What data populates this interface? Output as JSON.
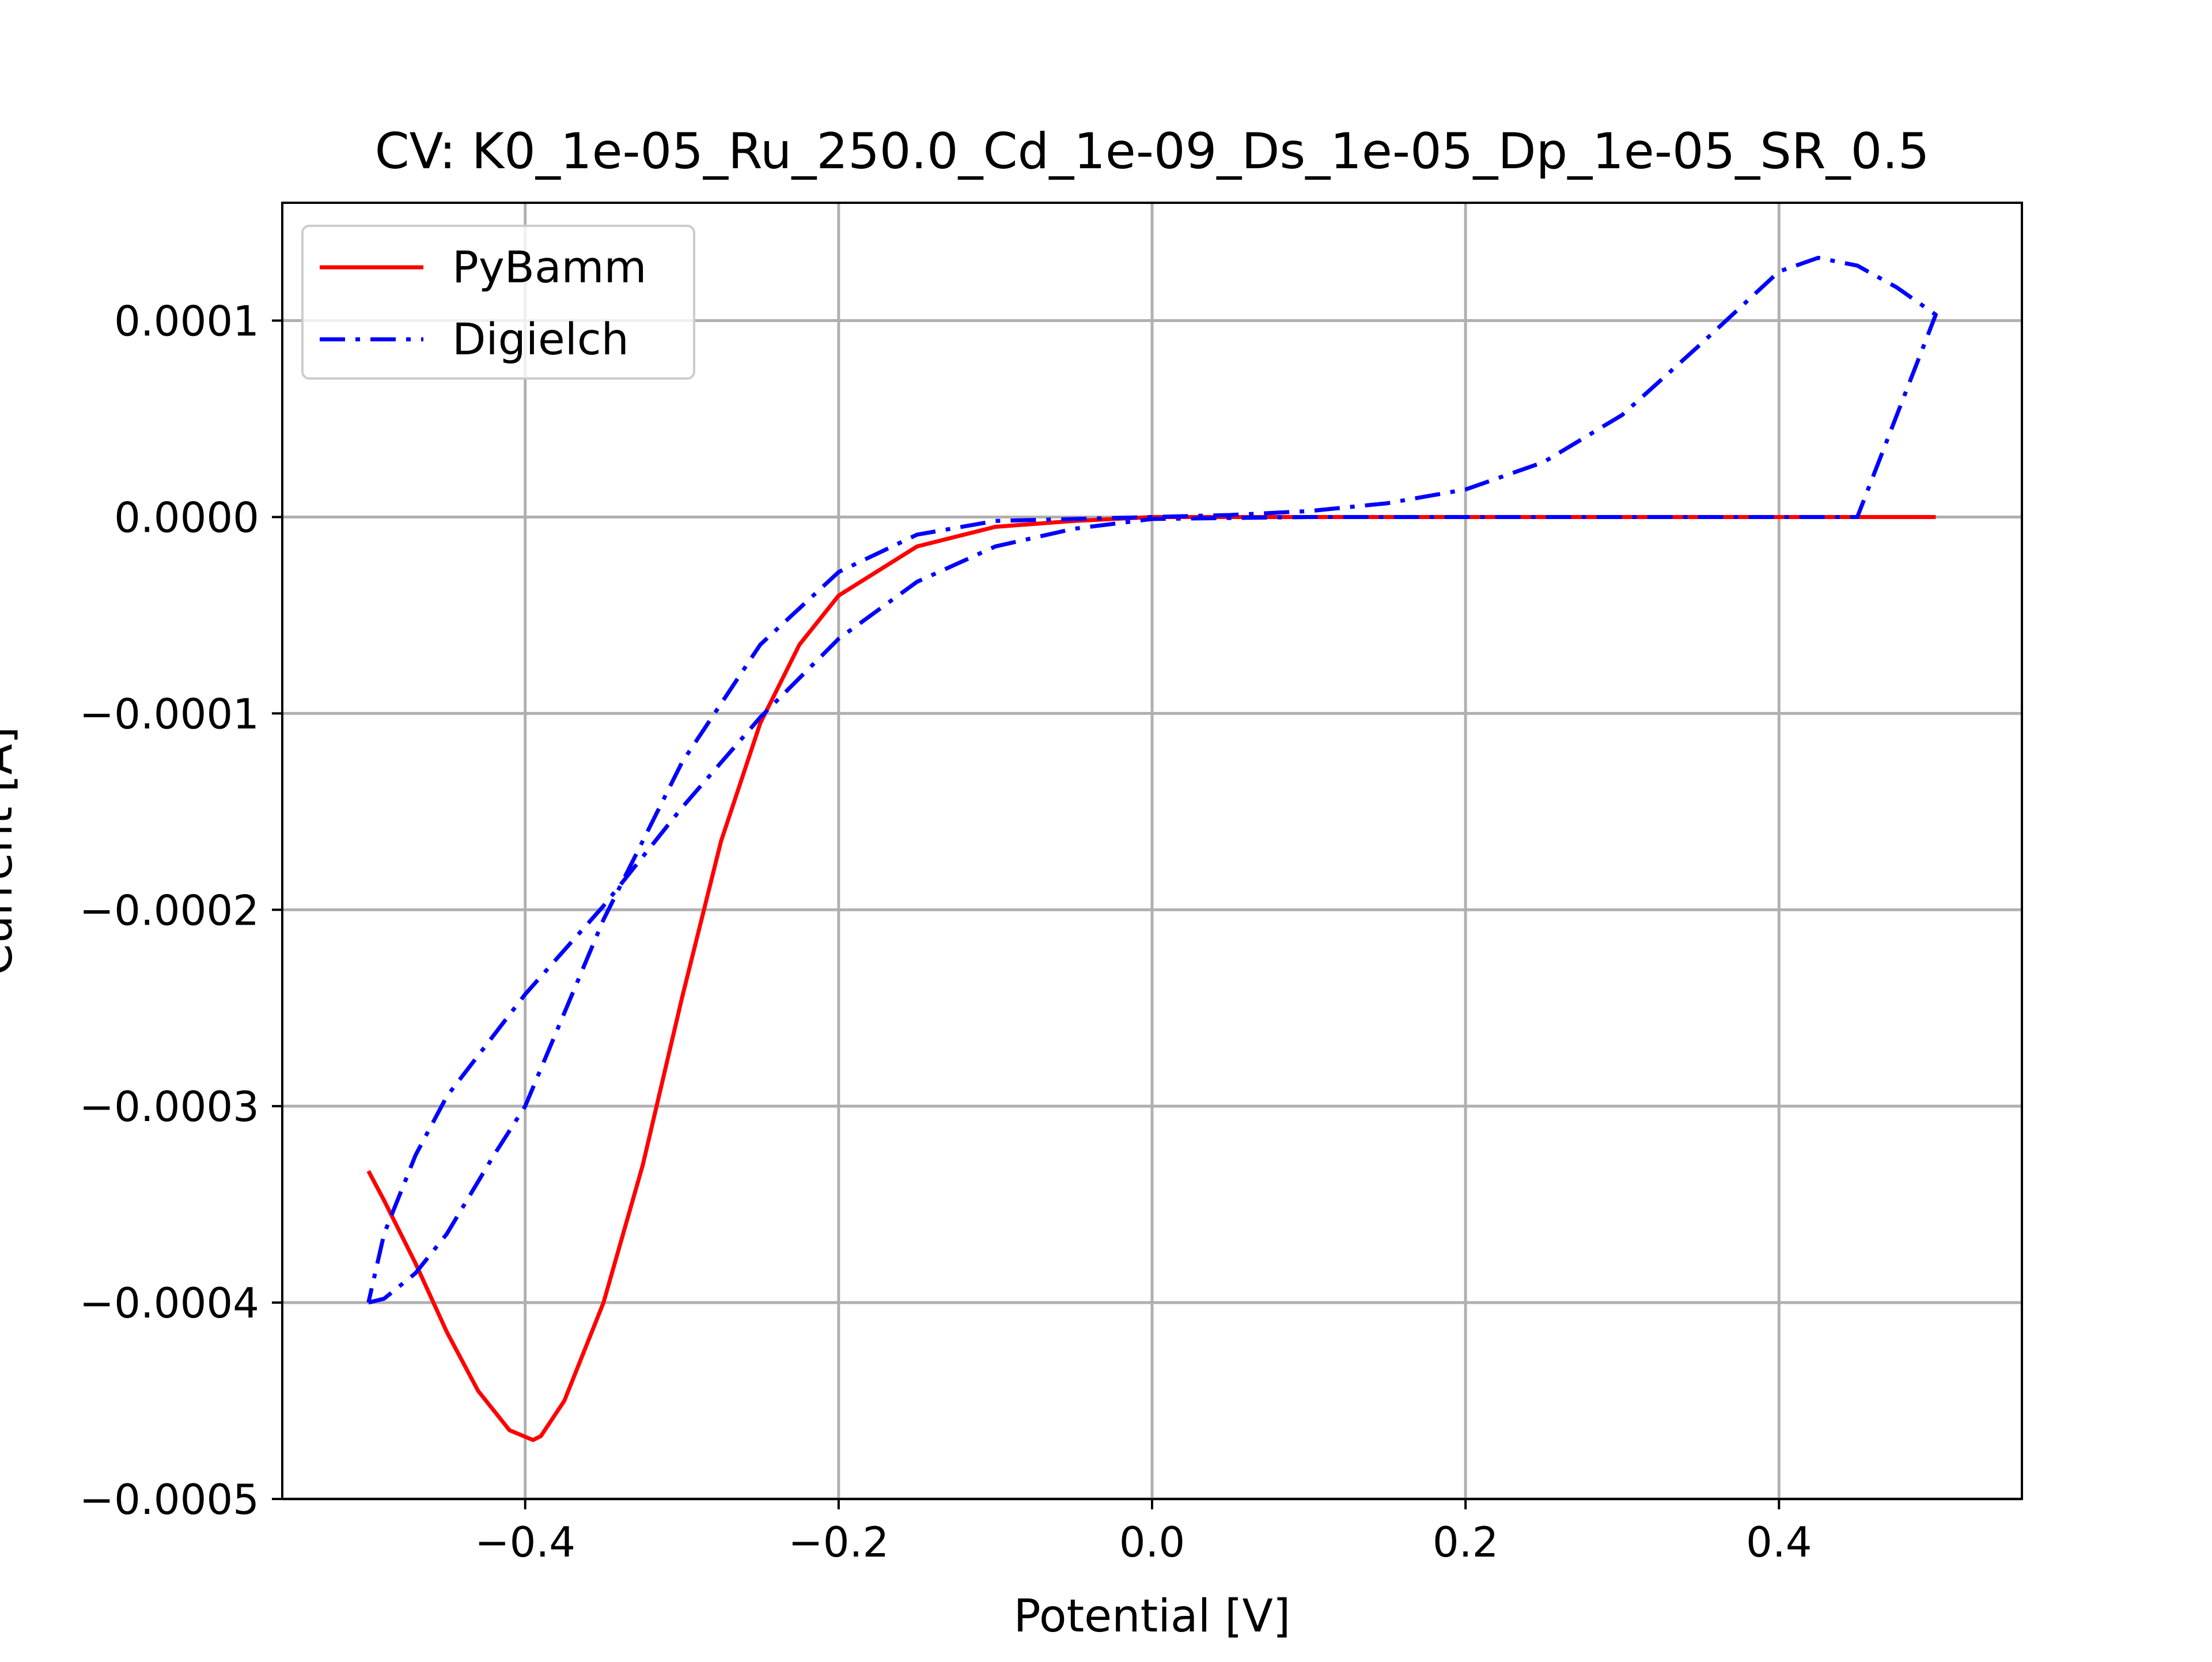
{
  "chart_data": {
    "type": "line",
    "title": "CV: K0_1e-05_Ru_250.0_Cd_1e-09_Ds_1e-05_Dp_1e-05_SR_0.5",
    "xlabel": "Potential [V]",
    "ylabel": "Current [A]",
    "xlim": [
      -0.555,
      0.555
    ],
    "ylim": [
      -0.0005,
      0.00016
    ],
    "grid": true,
    "legend_position": "top-left",
    "x_ticks": [
      {
        "value": -0.4,
        "label": "−0.4"
      },
      {
        "value": -0.2,
        "label": "−0.2"
      },
      {
        "value": 0.0,
        "label": "0.0"
      },
      {
        "value": 0.2,
        "label": "0.2"
      },
      {
        "value": 0.4,
        "label": "0.4"
      }
    ],
    "y_ticks": [
      {
        "value": 0.0001,
        "label": "0.0001"
      },
      {
        "value": 0.0,
        "label": "0.0000"
      },
      {
        "value": -0.0001,
        "label": "−0.0001"
      },
      {
        "value": -0.0002,
        "label": "−0.0002"
      },
      {
        "value": -0.0003,
        "label": "−0.0003"
      },
      {
        "value": -0.0004,
        "label": "−0.0004"
      },
      {
        "value": -0.0005,
        "label": "−0.0005"
      }
    ],
    "series": [
      {
        "name": "PyBamm",
        "color": "#ff0000",
        "style": "solid",
        "points": [
          [
            0.5,
            0.0
          ],
          [
            0.3,
            0.0
          ],
          [
            0.1,
            0.0
          ],
          [
            0.0,
            0.0
          ],
          [
            -0.05,
            -2e-06
          ],
          [
            -0.1,
            -5e-06
          ],
          [
            -0.15,
            -1.5e-05
          ],
          [
            -0.2,
            -4e-05
          ],
          [
            -0.225,
            -6.5e-05
          ],
          [
            -0.25,
            -0.000105
          ],
          [
            -0.275,
            -0.000165
          ],
          [
            -0.3,
            -0.000245
          ],
          [
            -0.325,
            -0.00033
          ],
          [
            -0.35,
            -0.0004
          ],
          [
            -0.375,
            -0.00045
          ],
          [
            -0.39,
            -0.000468
          ],
          [
            -0.395,
            -0.00047
          ],
          [
            -0.41,
            -0.000465
          ],
          [
            -0.43,
            -0.000445
          ],
          [
            -0.45,
            -0.000415
          ],
          [
            -0.47,
            -0.00038
          ],
          [
            -0.49,
            -0.000348
          ],
          [
            -0.5,
            -0.000333
          ]
        ]
      },
      {
        "name": "Digielch",
        "color": "#0000ff",
        "style": "dashdot",
        "points": [
          [
            -0.5,
            -0.0004
          ],
          [
            -0.49,
            -0.000398
          ],
          [
            -0.47,
            -0.000385
          ],
          [
            -0.45,
            -0.000365
          ],
          [
            -0.42,
            -0.000325
          ],
          [
            -0.4,
            -0.0003
          ],
          [
            -0.35,
            -0.000205
          ],
          [
            -0.3,
            -0.000125
          ],
          [
            -0.25,
            -6.5e-05
          ],
          [
            -0.2,
            -2.8e-05
          ],
          [
            -0.15,
            -9e-06
          ],
          [
            -0.1,
            -2e-06
          ],
          [
            0.0,
            0.0
          ],
          [
            0.05,
            1e-06
          ],
          [
            0.1,
            3e-06
          ],
          [
            0.15,
            7e-06
          ],
          [
            0.2,
            1.4e-05
          ],
          [
            0.25,
            2.8e-05
          ],
          [
            0.3,
            5.2e-05
          ],
          [
            0.35,
            8.8e-05
          ],
          [
            0.4,
            0.000125
          ],
          [
            0.425,
            0.000132
          ],
          [
            0.45,
            0.000128
          ],
          [
            0.475,
            0.000117
          ],
          [
            0.5,
            0.000103
          ],
          [
            0.45,
            0.0
          ],
          [
            0.35,
            0.0
          ],
          [
            0.2,
            0.0
          ],
          [
            0.1,
            0.0
          ],
          [
            0.0,
            -1e-06
          ],
          [
            -0.05,
            -6e-06
          ],
          [
            -0.1,
            -1.5e-05
          ],
          [
            -0.15,
            -3.3e-05
          ],
          [
            -0.2,
            -6.2e-05
          ],
          [
            -0.25,
            -0.000102
          ],
          [
            -0.3,
            -0.000148
          ],
          [
            -0.35,
            -0.000198
          ],
          [
            -0.4,
            -0.000243
          ],
          [
            -0.45,
            -0.000295
          ],
          [
            -0.47,
            -0.000325
          ],
          [
            -0.49,
            -0.000365
          ],
          [
            -0.5,
            -0.0004
          ]
        ]
      }
    ]
  }
}
